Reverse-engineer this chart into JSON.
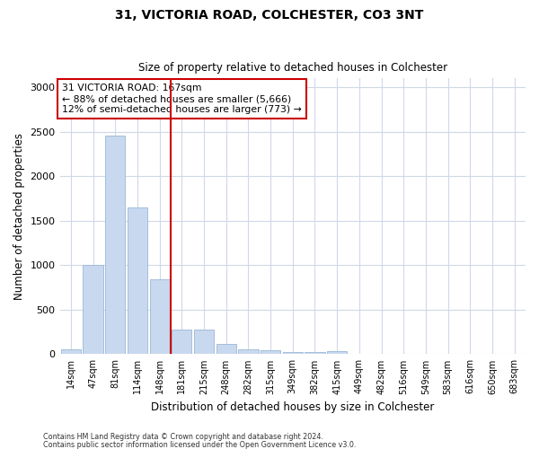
{
  "title": "31, VICTORIA ROAD, COLCHESTER, CO3 3NT",
  "subtitle": "Size of property relative to detached houses in Colchester",
  "xlabel": "Distribution of detached houses by size in Colchester",
  "ylabel": "Number of detached properties",
  "categories": [
    "14sqm",
    "47sqm",
    "81sqm",
    "114sqm",
    "148sqm",
    "181sqm",
    "215sqm",
    "248sqm",
    "282sqm",
    "315sqm",
    "349sqm",
    "382sqm",
    "415sqm",
    "449sqm",
    "482sqm",
    "516sqm",
    "549sqm",
    "583sqm",
    "616sqm",
    "650sqm",
    "683sqm"
  ],
  "values": [
    55,
    1000,
    2460,
    1650,
    840,
    280,
    280,
    115,
    50,
    40,
    25,
    20,
    30,
    0,
    0,
    0,
    0,
    0,
    0,
    0,
    0
  ],
  "bar_color": "#c8d8ee",
  "bar_edge_color": "#9ab8d8",
  "vline_x_index": 5,
  "vline_color": "#cc0000",
  "annotation_title": "31 VICTORIA ROAD: 167sqm",
  "annotation_line1": "← 88% of detached houses are smaller (5,666)",
  "annotation_line2": "12% of semi-detached houses are larger (773) →",
  "annotation_box_color": "#cc0000",
  "ylim": [
    0,
    3100
  ],
  "yticks": [
    0,
    500,
    1000,
    1500,
    2000,
    2500,
    3000
  ],
  "footer1": "Contains HM Land Registry data © Crown copyright and database right 2024.",
  "footer2": "Contains public sector information licensed under the Open Government Licence v3.0.",
  "bg_color": "#ffffff",
  "plot_bg_color": "#ffffff",
  "grid_color": "#d0d8e8"
}
